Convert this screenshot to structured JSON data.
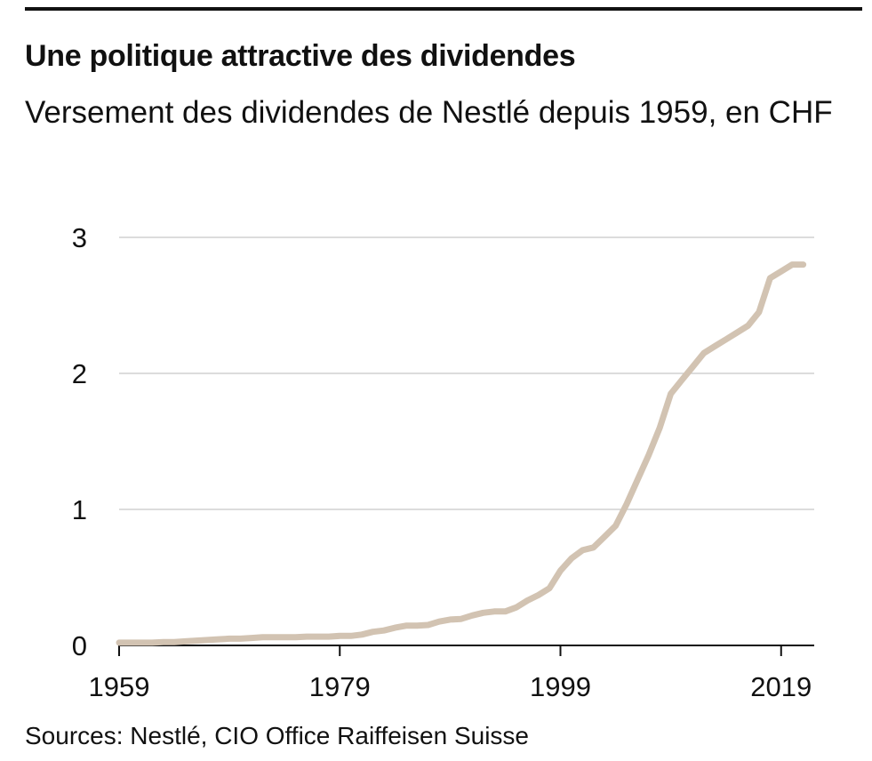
{
  "header": {
    "title": "Une politique attractive des dividendes",
    "subtitle": "Versement des dividendes de Nestlé depuis 1959, en CHF"
  },
  "footer": {
    "source": "Sources: Nestlé, CIO Office Raiffeisen Suisse"
  },
  "chart_data": {
    "type": "line",
    "title": "Une politique attractive des dividendes",
    "subtitle": "Versement des dividendes de Nestlé depuis 1959, en CHF",
    "xlabel": "",
    "ylabel": "",
    "xlim": [
      1959,
      2022
    ],
    "ylim": [
      0,
      3
    ],
    "x_ticks": [
      1959,
      1979,
      1999,
      2019
    ],
    "y_ticks": [
      0,
      1,
      2,
      3
    ],
    "grid": "horizontal",
    "line_color": "#d2c3b2",
    "series": [
      {
        "x": [
          1959,
          1960,
          1961,
          1962,
          1963,
          1964,
          1965,
          1966,
          1967,
          1968,
          1969,
          1970,
          1971,
          1972,
          1973,
          1974,
          1975,
          1976,
          1977,
          1978,
          1979,
          1980,
          1981,
          1982,
          1983,
          1984,
          1985,
          1986,
          1987,
          1988,
          1989,
          1990,
          1991,
          1992,
          1993,
          1994,
          1995,
          1996,
          1997,
          1998,
          1999,
          2000,
          2001,
          2002,
          2003,
          2004,
          2005,
          2006,
          2007,
          2008,
          2009,
          2010,
          2011,
          2012,
          2013,
          2014,
          2015,
          2016,
          2017,
          2018,
          2019,
          2020,
          2021
        ],
        "values": [
          0.02,
          0.02,
          0.02,
          0.02,
          0.025,
          0.025,
          0.03,
          0.035,
          0.04,
          0.045,
          0.05,
          0.05,
          0.055,
          0.06,
          0.06,
          0.06,
          0.06,
          0.065,
          0.065,
          0.065,
          0.07,
          0.07,
          0.08,
          0.1,
          0.11,
          0.13,
          0.145,
          0.145,
          0.15,
          0.175,
          0.19,
          0.195,
          0.22,
          0.24,
          0.25,
          0.25,
          0.28,
          0.33,
          0.37,
          0.42,
          0.55,
          0.64,
          0.7,
          0.72,
          0.8,
          0.88,
          1.04,
          1.22,
          1.4,
          1.6,
          1.85,
          1.95,
          2.05,
          2.15,
          2.2,
          2.25,
          2.3,
          2.35,
          2.45,
          2.7,
          2.75,
          2.8,
          2.8
        ]
      }
    ]
  }
}
